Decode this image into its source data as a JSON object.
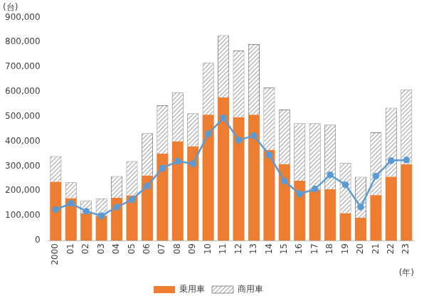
{
  "chart_data": {
    "type": "bar",
    "y_label": "(台)",
    "x_label": "(年)",
    "categories": [
      "2000",
      "01",
      "02",
      "03",
      "04",
      "05",
      "06",
      "07",
      "08",
      "09",
      "10",
      "11",
      "12",
      "13",
      "14",
      "15",
      "16",
      "17",
      "18",
      "19",
      "20",
      "21",
      "22",
      "23"
    ],
    "stacked": true,
    "grid": false,
    "legend": "bottom",
    "ylim": [
      0,
      900000
    ],
    "yticks": [
      0,
      {
        "value": 100000,
        "label": "100,000"
      },
      {
        "value": 200000,
        "label": "200,000"
      },
      {
        "value": 300000,
        "label": "300,000"
      },
      {
        "value": 400000,
        "label": "400,000"
      },
      {
        "value": 500000,
        "label": "500,000"
      },
      {
        "value": 600000,
        "label": "600,000"
      },
      {
        "value": 700000,
        "label": "700,000"
      },
      {
        "value": 800000,
        "label": "800,000"
      },
      {
        "value": 900000,
        "label": "900,000"
      }
    ],
    "series": [
      {
        "name": "乗用車",
        "type": "bar",
        "color": "#ed7d31",
        "values": [
          237000,
          170000,
          110000,
          100000,
          172000,
          182000,
          262000,
          350000,
          400000,
          380000,
          507000,
          577000,
          497000,
          507000,
          365000,
          308000,
          241000,
          205000,
          207000,
          110000,
          92000,
          183000,
          257000,
          307000
        ]
      },
      {
        "name": "商用車",
        "type": "bar",
        "color": "#a6a6a6",
        "values": [
          103000,
          65000,
          50000,
          70000,
          88000,
          138000,
          171000,
          195000,
          198000,
          133000,
          210000,
          251000,
          269000,
          285000,
          252000,
          220000,
          232000,
          268000,
          260000,
          204000,
          165000,
          253000,
          278000,
          302000
        ]
      },
      {
        "type": "line",
        "color": "#5b9bd5",
        "marker": "circle",
        "values": [
          125000,
          150000,
          118000,
          100000,
          135000,
          165000,
          220000,
          292000,
          320000,
          310000,
          430000,
          495000,
          405000,
          423000,
          345000,
          240000,
          188000,
          208000,
          265000,
          225000,
          135000,
          260000,
          322000,
          325000
        ]
      }
    ]
  }
}
